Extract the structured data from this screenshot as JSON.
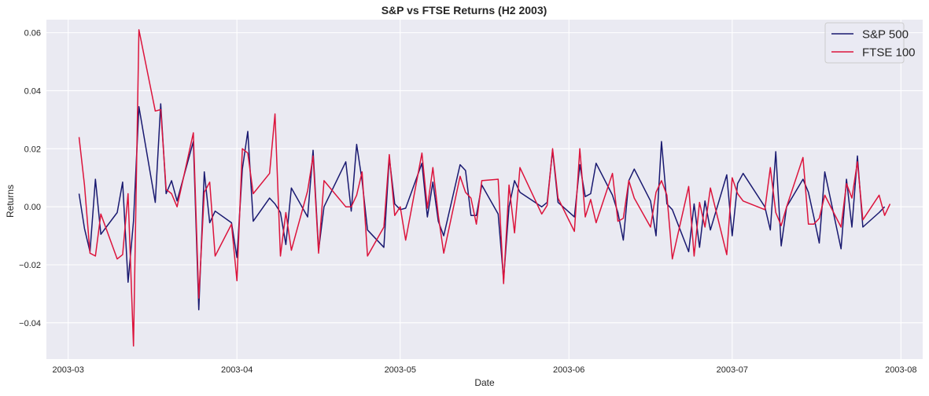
{
  "chart_data": {
    "type": "line",
    "title": "S&P vs FTSE Returns (H2 2003)",
    "xlabel": "Date",
    "ylabel": "Returns",
    "x_ticks": [
      "2003-03",
      "2003-04",
      "2003-05",
      "2003-06",
      "2003-07",
      "2003-08"
    ],
    "y_ticks": [
      "−0.04",
      "−0.02",
      "0.00",
      "0.02",
      "0.04",
      "0.06"
    ],
    "y_tick_values": [
      -0.04,
      -0.02,
      0.0,
      0.02,
      0.04,
      0.06
    ],
    "xlim": [
      "2003-02-25",
      "2003-08-05"
    ],
    "ylim": [
      -0.0525,
      0.0645
    ],
    "grid": true,
    "legend_position": "top-right",
    "background_color": "#EAEAF2",
    "series": [
      {
        "name": "S&P 500",
        "color": "#191970",
        "points": [
          [
            "2003-03-03",
            0.0045
          ],
          [
            "2003-03-04",
            -0.0075
          ],
          [
            "2003-03-05",
            -0.0155
          ],
          [
            "2003-03-06",
            0.0095
          ],
          [
            "2003-03-07",
            -0.0095
          ],
          [
            "2003-03-10",
            -0.002
          ],
          [
            "2003-03-11",
            0.0085
          ],
          [
            "2003-03-12",
            -0.026
          ],
          [
            "2003-03-13",
            -0.005
          ],
          [
            "2003-03-14",
            0.0345
          ],
          [
            "2003-03-17",
            0.0015
          ],
          [
            "2003-03-18",
            0.0355
          ],
          [
            "2003-03-19",
            0.0045
          ],
          [
            "2003-03-20",
            0.009
          ],
          [
            "2003-03-21",
            0.002
          ],
          [
            "2003-03-24",
            0.0225
          ],
          [
            "2003-03-25",
            -0.0355
          ],
          [
            "2003-03-26",
            0.012
          ],
          [
            "2003-03-27",
            -0.0055
          ],
          [
            "2003-03-28",
            -0.0015
          ],
          [
            "2003-03-31",
            -0.0055
          ],
          [
            "2003-04-01",
            -0.0175
          ],
          [
            "2003-04-02",
            0.013
          ],
          [
            "2003-04-03",
            0.026
          ],
          [
            "2003-04-04",
            -0.005
          ],
          [
            "2003-04-07",
            0.003
          ],
          [
            "2003-04-08",
            0.001
          ],
          [
            "2003-04-09",
            -0.002
          ],
          [
            "2003-04-10",
            -0.013
          ],
          [
            "2003-04-11",
            0.0065
          ],
          [
            "2003-04-14",
            -0.0035
          ],
          [
            "2003-04-15",
            0.0195
          ],
          [
            "2003-04-16",
            -0.015
          ],
          [
            "2003-04-17",
            0.0
          ],
          [
            "2003-04-21",
            0.0155
          ],
          [
            "2003-04-22",
            -0.0015
          ],
          [
            "2003-04-23",
            0.0215
          ],
          [
            "2003-04-24",
            0.009
          ],
          [
            "2003-04-25",
            -0.008
          ],
          [
            "2003-04-28",
            -0.014
          ],
          [
            "2003-04-29",
            0.017
          ],
          [
            "2003-04-30",
            0.001
          ],
          [
            "2003-05-01",
            -0.001
          ],
          [
            "2003-05-02",
            -0.0005
          ],
          [
            "2003-05-05",
            0.015
          ],
          [
            "2003-05-06",
            -0.0035
          ],
          [
            "2003-05-07",
            0.0085
          ],
          [
            "2003-05-08",
            -0.005
          ],
          [
            "2003-05-09",
            -0.01
          ],
          [
            "2003-05-12",
            0.0145
          ],
          [
            "2003-05-13",
            0.0125
          ],
          [
            "2003-05-14",
            -0.003
          ],
          [
            "2003-05-15",
            -0.003
          ],
          [
            "2003-05-16",
            0.0075
          ],
          [
            "2003-05-19",
            -0.0025
          ],
          [
            "2003-05-20",
            -0.025
          ],
          [
            "2003-05-21",
            0.0
          ],
          [
            "2003-05-22",
            0.009
          ],
          [
            "2003-05-23",
            0.005
          ],
          [
            "2003-05-27",
            0.0
          ],
          [
            "2003-05-28",
            0.0015
          ],
          [
            "2003-05-29",
            0.0195
          ],
          [
            "2003-05-30",
            0.0015
          ],
          [
            "2003-06-02",
            -0.0035
          ],
          [
            "2003-06-03",
            0.0145
          ],
          [
            "2003-06-04",
            0.0035
          ],
          [
            "2003-06-05",
            0.0045
          ],
          [
            "2003-06-06",
            0.015
          ],
          [
            "2003-06-09",
            0.004
          ],
          [
            "2003-06-10",
            -0.002
          ],
          [
            "2003-06-11",
            -0.0115
          ],
          [
            "2003-06-12",
            0.009
          ],
          [
            "2003-06-13",
            0.013
          ],
          [
            "2003-06-16",
            0.002
          ],
          [
            "2003-06-17",
            -0.01
          ],
          [
            "2003-06-18",
            0.0225
          ],
          [
            "2003-06-19",
            0.001
          ],
          [
            "2003-06-20",
            -0.001
          ],
          [
            "2003-06-23",
            -0.0155
          ],
          [
            "2003-06-24",
            0.001
          ],
          [
            "2003-06-25",
            -0.014
          ],
          [
            "2003-06-26",
            0.002
          ],
          [
            "2003-06-27",
            -0.008
          ],
          [
            "2003-06-30",
            0.011
          ],
          [
            "2003-07-01",
            -0.01
          ],
          [
            "2003-07-02",
            0.008
          ],
          [
            "2003-07-03",
            0.0115
          ],
          [
            "2003-07-07",
            0.0
          ],
          [
            "2003-07-08",
            -0.008
          ],
          [
            "2003-07-09",
            0.019
          ],
          [
            "2003-07-10",
            -0.0135
          ],
          [
            "2003-07-11",
            0.0
          ],
          [
            "2003-07-14",
            0.0095
          ],
          [
            "2003-07-15",
            0.005
          ],
          [
            "2003-07-16",
            -0.0035
          ],
          [
            "2003-07-17",
            -0.0125
          ],
          [
            "2003-07-18",
            0.012
          ],
          [
            "2003-07-21",
            -0.0145
          ],
          [
            "2003-07-22",
            0.0095
          ],
          [
            "2003-07-23",
            -0.007
          ],
          [
            "2003-07-24",
            0.0175
          ],
          [
            "2003-07-25",
            -0.007
          ],
          [
            "2003-07-28",
            -0.002
          ],
          [
            "2003-07-29",
            0.0
          ]
        ]
      },
      {
        "name": "FTSE 100",
        "color": "#DC143C",
        "points": [
          [
            "2003-03-03",
            0.024
          ],
          [
            "2003-03-04",
            0.0075
          ],
          [
            "2003-03-05",
            -0.016
          ],
          [
            "2003-03-06",
            -0.017
          ],
          [
            "2003-03-07",
            -0.0025
          ],
          [
            "2003-03-10",
            -0.018
          ],
          [
            "2003-03-11",
            -0.0165
          ],
          [
            "2003-03-12",
            0.0045
          ],
          [
            "2003-03-13",
            -0.048
          ],
          [
            "2003-03-14",
            0.061
          ],
          [
            "2003-03-17",
            0.033
          ],
          [
            "2003-03-18",
            0.0335
          ],
          [
            "2003-03-19",
            0.006
          ],
          [
            "2003-03-20",
            0.0045
          ],
          [
            "2003-03-21",
            0.0
          ],
          [
            "2003-03-24",
            0.0255
          ],
          [
            "2003-03-25",
            -0.0315
          ],
          [
            "2003-03-26",
            0.005
          ],
          [
            "2003-03-27",
            0.0085
          ],
          [
            "2003-03-28",
            -0.017
          ],
          [
            "2003-03-31",
            -0.006
          ],
          [
            "2003-04-01",
            -0.0255
          ],
          [
            "2003-04-02",
            0.02
          ],
          [
            "2003-04-03",
            0.0185
          ],
          [
            "2003-04-04",
            0.0045
          ],
          [
            "2003-04-07",
            0.0115
          ],
          [
            "2003-04-08",
            0.032
          ],
          [
            "2003-04-09",
            -0.017
          ],
          [
            "2003-04-10",
            -0.002
          ],
          [
            "2003-04-11",
            -0.015
          ],
          [
            "2003-04-14",
            0.0055
          ],
          [
            "2003-04-15",
            0.0175
          ],
          [
            "2003-04-16",
            -0.016
          ],
          [
            "2003-04-17",
            0.009
          ],
          [
            "2003-04-21",
            0.0
          ],
          [
            "2003-04-22",
            0.0
          ],
          [
            "2003-04-23",
            0.004
          ],
          [
            "2003-04-24",
            0.012
          ],
          [
            "2003-04-25",
            -0.017
          ],
          [
            "2003-04-28",
            -0.007
          ],
          [
            "2003-04-29",
            0.018
          ],
          [
            "2003-04-30",
            -0.003
          ],
          [
            "2003-05-01",
            0.0
          ],
          [
            "2003-05-02",
            -0.0115
          ],
          [
            "2003-05-05",
            0.0185
          ],
          [
            "2003-05-06",
            -0.0005
          ],
          [
            "2003-05-07",
            0.0135
          ],
          [
            "2003-05-08",
            -0.003
          ],
          [
            "2003-05-09",
            -0.016
          ],
          [
            "2003-05-12",
            0.0105
          ],
          [
            "2003-05-13",
            0.005
          ],
          [
            "2003-05-14",
            0.003
          ],
          [
            "2003-05-15",
            -0.006
          ],
          [
            "2003-05-16",
            0.009
          ],
          [
            "2003-05-19",
            0.0095
          ],
          [
            "2003-05-20",
            -0.0265
          ],
          [
            "2003-05-21",
            0.0075
          ],
          [
            "2003-05-22",
            -0.009
          ],
          [
            "2003-05-23",
            0.0135
          ],
          [
            "2003-05-27",
            -0.0025
          ],
          [
            "2003-05-28",
            0.0005
          ],
          [
            "2003-05-29",
            0.02
          ],
          [
            "2003-05-30",
            0.003
          ],
          [
            "2003-06-02",
            -0.0085
          ],
          [
            "2003-06-03",
            0.02
          ],
          [
            "2003-06-04",
            -0.0035
          ],
          [
            "2003-06-05",
            0.0025
          ],
          [
            "2003-06-06",
            -0.0055
          ],
          [
            "2003-06-09",
            0.0115
          ],
          [
            "2003-06-10",
            -0.005
          ],
          [
            "2003-06-11",
            -0.004
          ],
          [
            "2003-06-12",
            0.009
          ],
          [
            "2003-06-13",
            0.003
          ],
          [
            "2003-06-16",
            -0.007
          ],
          [
            "2003-06-17",
            0.005
          ],
          [
            "2003-06-18",
            0.009
          ],
          [
            "2003-06-19",
            0.004
          ],
          [
            "2003-06-20",
            -0.018
          ],
          [
            "2003-06-23",
            0.007
          ],
          [
            "2003-06-24",
            -0.017
          ],
          [
            "2003-06-25",
            0.0015
          ],
          [
            "2003-06-26",
            -0.007
          ],
          [
            "2003-06-27",
            0.0065
          ],
          [
            "2003-06-30",
            -0.0165
          ],
          [
            "2003-07-01",
            0.01
          ],
          [
            "2003-07-02",
            0.0045
          ],
          [
            "2003-07-03",
            0.002
          ],
          [
            "2003-07-07",
            -0.001
          ],
          [
            "2003-07-08",
            0.0135
          ],
          [
            "2003-07-09",
            -0.002
          ],
          [
            "2003-07-10",
            -0.0065
          ],
          [
            "2003-07-11",
            0.0
          ],
          [
            "2003-07-14",
            0.017
          ],
          [
            "2003-07-15",
            -0.006
          ],
          [
            "2003-07-16",
            -0.006
          ],
          [
            "2003-07-17",
            -0.004
          ],
          [
            "2003-07-18",
            0.004
          ],
          [
            "2003-07-21",
            -0.007
          ],
          [
            "2003-07-22",
            0.008
          ],
          [
            "2003-07-23",
            0.003
          ],
          [
            "2003-07-24",
            0.0155
          ],
          [
            "2003-07-25",
            -0.0045
          ],
          [
            "2003-07-28",
            0.004
          ],
          [
            "2003-07-29",
            -0.003
          ],
          [
            "2003-07-30",
            0.001
          ]
        ]
      }
    ]
  }
}
